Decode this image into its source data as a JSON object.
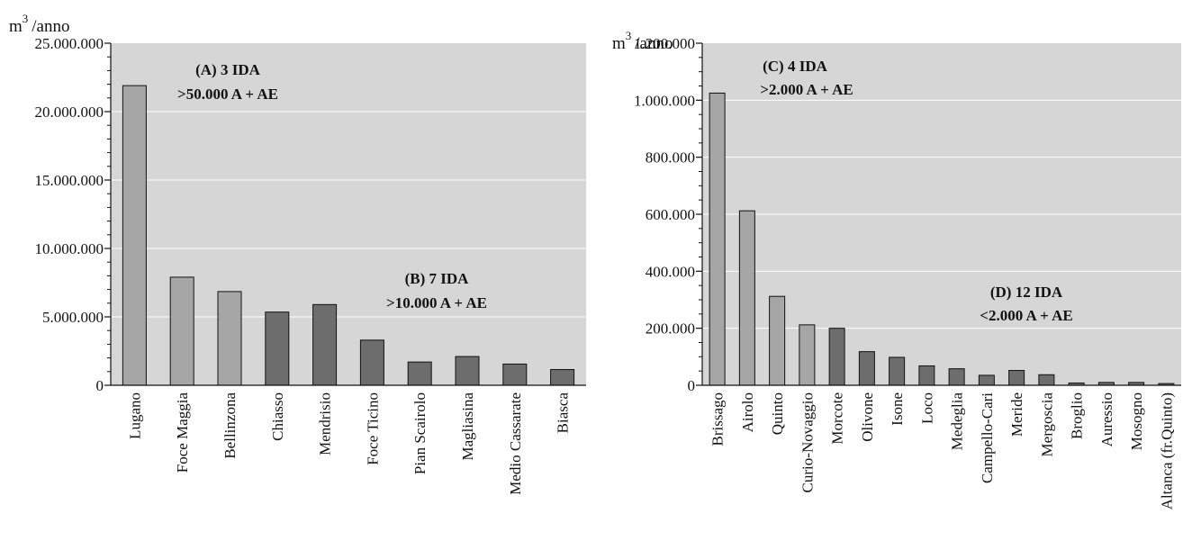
{
  "colors": {
    "plot_bg": "#d6d6d6",
    "bar_light": "#a6a6a6",
    "bar_dark": "#6d6d6d",
    "gridline": "#ffffff"
  },
  "chart_data": [
    {
      "type": "bar",
      "ylabel": "m3 /anno",
      "ylabel_parts": {
        "unit": "m",
        "exponent": "3",
        "suffix": "/anno"
      },
      "ylim": [
        0,
        25000000
      ],
      "yticks": [
        0,
        5000000,
        10000000,
        15000000,
        20000000,
        25000000
      ],
      "ytick_labels": [
        "0",
        "5.000.000",
        "10.000.000",
        "15.000.000",
        "20.000.000",
        "25.000.000"
      ],
      "grid": true,
      "categories": [
        "Lugano",
        "Foce Maggia",
        "Bellinzona",
        "Chiasso",
        "Mendrisio",
        "Foce Ticino",
        "Pian Scairolo",
        "Magliasina",
        "Medio Cassarate",
        "Biasca"
      ],
      "values": [
        21900000,
        7900000,
        6850000,
        5350000,
        5900000,
        3300000,
        1700000,
        2100000,
        1550000,
        1150000
      ],
      "groups": [
        "A",
        "A",
        "A",
        "B",
        "B",
        "B",
        "B",
        "B",
        "B",
        "B"
      ],
      "annotations": [
        {
          "id": "A",
          "line1": "(A) 3 IDA",
          "line2": ">50.000 A + AE"
        },
        {
          "id": "B",
          "line1": "(B) 7 IDA",
          "line2": ">10.000 A + AE"
        }
      ]
    },
    {
      "type": "bar",
      "ylabel": "m3 /anno",
      "ylabel_parts": {
        "unit": "m",
        "exponent": "3",
        "suffix": "/anno"
      },
      "ylim": [
        0,
        1200000
      ],
      "yticks": [
        0,
        200000,
        400000,
        600000,
        800000,
        1000000,
        1200000
      ],
      "ytick_labels": [
        "0",
        "200.000",
        "400.000",
        "600.000",
        "800.000",
        "1.000.000",
        "1.200.000"
      ],
      "grid": true,
      "categories": [
        "Brissago",
        "Airolo",
        "Quinto",
        "Curio-Novaggio",
        "Morcote",
        "Olivone",
        "Isone",
        "Loco",
        "Medeglia",
        "Campello-Cari",
        "Meride",
        "Mergoscia",
        "Broglio",
        "Auressio",
        "Mosogno",
        "Altanca (fr.Quinto)"
      ],
      "values": [
        1025000,
        612000,
        312000,
        212000,
        200000,
        118000,
        98000,
        68000,
        58000,
        35000,
        52000,
        37000,
        8000,
        10000,
        10000,
        6000
      ],
      "groups": [
        "C",
        "C",
        "C",
        "C",
        "D",
        "D",
        "D",
        "D",
        "D",
        "D",
        "D",
        "D",
        "D",
        "D",
        "D",
        "D"
      ],
      "annotations": [
        {
          "id": "C",
          "line1": "(C) 4 IDA",
          "line2": ">2.000 A + AE"
        },
        {
          "id": "D",
          "line1": "(D) 12 IDA",
          "line2": "<2.000 A + AE"
        }
      ]
    }
  ]
}
